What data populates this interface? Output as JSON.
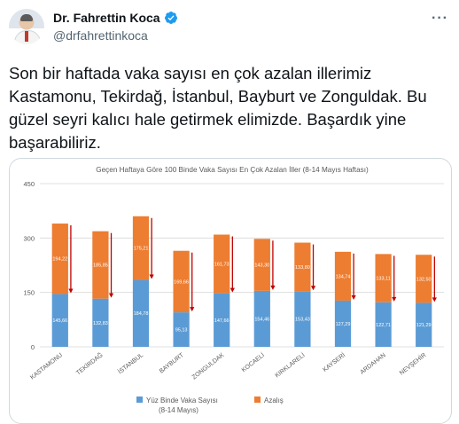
{
  "tweet": {
    "display_name": "Dr. Fahrettin Koca",
    "handle": "@drfahrettinkoca",
    "more_icon": "more-dots-icon",
    "verified_icon": "verified-badge-icon",
    "text": "Son bir haftada vaka sayısı en çok azalan illerimiz Kastamonu, Tekirdağ, İstanbul, Bayburt ve Zonguldak. Bu güzel seyri kalıcı hale getirmek elimizde. Başardık yine başarabiliriz."
  },
  "colors": {
    "blue": "#5b9bd5",
    "orange": "#ed7d31",
    "arrow": "#c00000",
    "grid": "#d9d9d9",
    "verified": "#1d9bf0"
  },
  "chart_data": {
    "type": "bar",
    "stacked": true,
    "title": "Geçen Haftaya Göre 100 Binde Vaka Sayısı En Çok Azalan İller (8-14 Mayıs Haftası)",
    "categories": [
      "KASTAMONU",
      "TEKİRDAĞ",
      "İSTANBUL",
      "BAYBURT",
      "ZONGULDAK",
      "KOCAELİ",
      "KIRKLARELİ",
      "KAYSERİ",
      "ARDAHAN",
      "NEVŞEHİR"
    ],
    "series": [
      {
        "name": "Yüz Binde Vaka Sayısı (8-14 Mayıs)",
        "values": [
          145.66,
          132.83,
          184.78,
          95.13,
          147.66,
          154.46,
          153.43,
          127.29,
          122.71,
          121.29
        ],
        "labels": [
          "145,66",
          "132,83",
          "184,78",
          "95,13",
          "147,66",
          "154,46",
          "153,43",
          "127,29",
          "122,71",
          "121,29"
        ]
      },
      {
        "name": "Azalış",
        "values": [
          194.22,
          185.85,
          175.21,
          169.66,
          161.73,
          143.3,
          133.8,
          134.74,
          133.11,
          132.5
        ],
        "labels": [
          "194,22",
          "185,85",
          "175,21",
          "169,66",
          "161,73",
          "143,30",
          "133,80",
          "134,74",
          "133,11",
          "132,50"
        ]
      }
    ],
    "y_ticks": [
      "0",
      "150",
      "300",
      "450"
    ],
    "ylim": [
      0,
      450
    ],
    "grid": true,
    "legend_position": "bottom",
    "legend": [
      "Yüz Binde Vaka Sayısı",
      "(8-14 Mayıs)",
      "Azalış"
    ]
  }
}
